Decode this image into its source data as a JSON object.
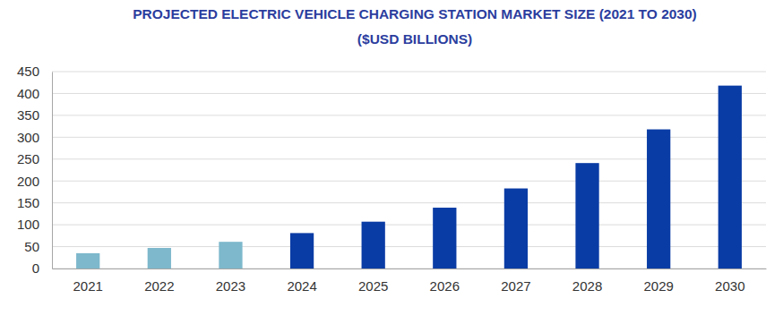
{
  "chart_data": {
    "type": "bar",
    "title": "PROJECTED ELECTRIC VEHICLE CHARGING STATION MARKET SIZE (2021 TO 2030)",
    "subtitle": "($USD BILLIONS)",
    "categories": [
      "2021",
      "2022",
      "2023",
      "2024",
      "2025",
      "2026",
      "2027",
      "2028",
      "2029",
      "2030"
    ],
    "values": [
      35,
      47,
      61,
      81,
      107,
      139,
      183,
      241,
      318,
      418
    ],
    "colors": [
      "#7db8cc",
      "#7db8cc",
      "#7db8cc",
      "#0a3ca5",
      "#0a3ca5",
      "#0a3ca5",
      "#0a3ca5",
      "#0a3ca5",
      "#0a3ca5",
      "#0a3ca5"
    ],
    "ylim": [
      0,
      450
    ],
    "yticks": [
      0,
      50,
      100,
      150,
      200,
      250,
      300,
      350,
      400,
      450
    ],
    "grid": true
  }
}
